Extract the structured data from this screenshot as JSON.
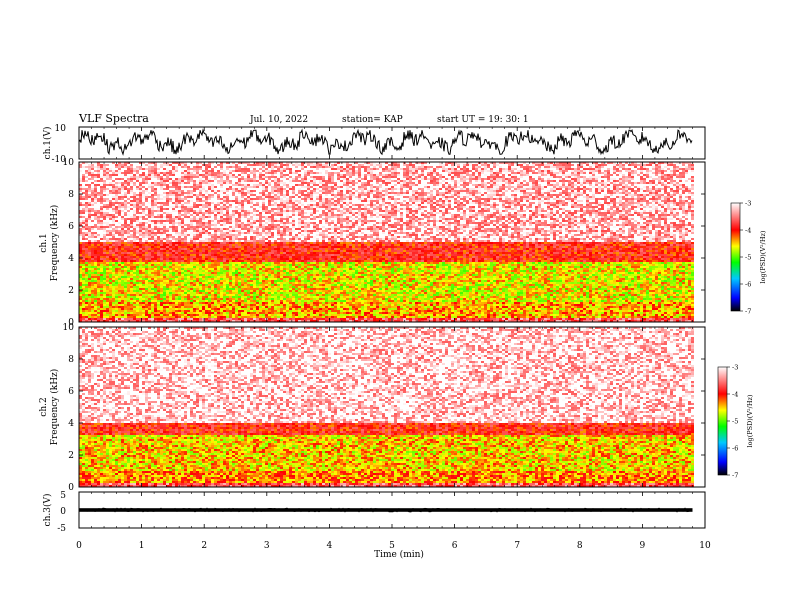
{
  "header": {
    "title": "VLF Spectra",
    "date": "Jul. 10, 2022",
    "station": "station= KAP",
    "start": "start UT = 19: 30: 1"
  },
  "colors": {
    "axis": "#000000",
    "colormap": [
      "#000000",
      "#0000ff",
      "#00c8ff",
      "#00ff00",
      "#ffff00",
      "#ff0000",
      "#ffffff"
    ]
  },
  "chart_data": [
    {
      "type": "line",
      "panel": "ch1-waveform",
      "ylabel": "ch.1(V)",
      "ylim": [
        -10,
        10
      ],
      "yticks": [
        "10",
        "-10"
      ],
      "xlim": [
        0,
        10
      ],
      "description_values": "signal oscillates roughly between -6 and +8 V across 0-9.8 min"
    },
    {
      "type": "heatmap",
      "panel": "ch1-spectrogram",
      "ylabel_line1": "ch.1",
      "ylabel_line2": "Frequency (kHz)",
      "ylim": [
        0,
        10
      ],
      "yticks": [
        "0",
        "2",
        "4",
        "6",
        "8",
        "10"
      ],
      "xlim": [
        0,
        10
      ],
      "data_xmax": 9.8,
      "bands": [
        {
          "f_min": 0.0,
          "f_max": 0.3,
          "level": -3.6
        },
        {
          "f_min": 0.3,
          "f_max": 1.2,
          "level": -4.4
        },
        {
          "f_min": 1.2,
          "f_max": 3.8,
          "level": -4.6
        },
        {
          "f_min": 3.8,
          "f_max": 5.0,
          "level": -3.9
        },
        {
          "f_min": 5.0,
          "f_max": 10.0,
          "level": -3.2
        }
      ],
      "colorbar": {
        "label": "log(PSD)(V²/Hz)",
        "range": [
          -7,
          -3
        ],
        "ticks": [
          "-3",
          "-4",
          "-5",
          "-6",
          "-7"
        ]
      }
    },
    {
      "type": "heatmap",
      "panel": "ch2-spectrogram",
      "ylabel_line1": "ch.2",
      "ylabel_line2": "Frequency (kHz)",
      "ylim": [
        0,
        10
      ],
      "yticks": [
        "0",
        "2",
        "4",
        "6",
        "8",
        "10"
      ],
      "xlim": [
        0,
        10
      ],
      "data_xmax": 9.8,
      "bands": [
        {
          "f_min": 0.0,
          "f_max": 0.3,
          "level": -3.6
        },
        {
          "f_min": 0.3,
          "f_max": 1.0,
          "level": -4.3
        },
        {
          "f_min": 1.0,
          "f_max": 3.2,
          "level": -4.5
        },
        {
          "f_min": 3.2,
          "f_max": 4.0,
          "level": -3.9
        },
        {
          "f_min": 4.0,
          "f_max": 10.0,
          "level": -3.1
        }
      ],
      "colorbar": {
        "label": "log(PSD)(V²/Hz)",
        "range": [
          -7,
          -3
        ],
        "ticks": [
          "-3",
          "-4",
          "-5",
          "-6",
          "-7"
        ]
      }
    },
    {
      "type": "line",
      "panel": "ch3-waveform",
      "ylabel": "ch.3(V)",
      "ylim": [
        -5,
        5
      ],
      "yticks": [
        "5",
        "0",
        "-5"
      ],
      "xlim": [
        0,
        10
      ],
      "description_values": "near-constant signal around 0 V with small noise (about -0.5 to 0.5 V)",
      "xlabel": "Time (min)",
      "xticks": [
        "0",
        "1",
        "2",
        "3",
        "4",
        "5",
        "6",
        "7",
        "8",
        "9",
        "10"
      ]
    }
  ]
}
